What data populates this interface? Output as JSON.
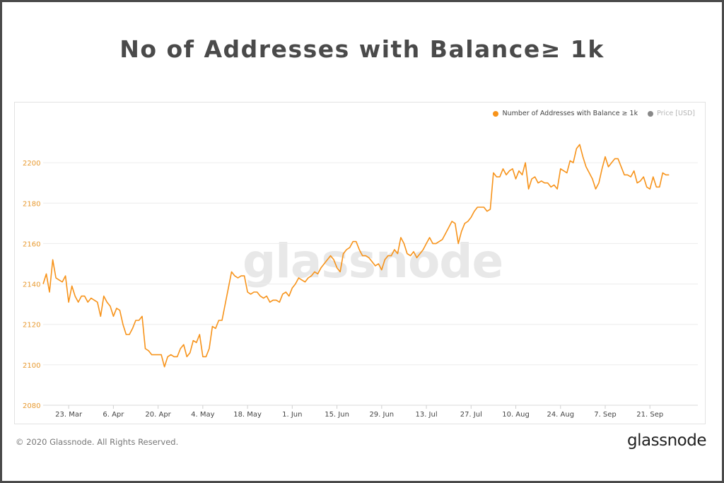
{
  "title": "No of Addresses with Balance≥ 1k",
  "copyright": "© 2020 Glassnode. All Rights Reserved.",
  "brand": "glassnode",
  "watermark": "glassnode",
  "colors": {
    "series": "#f7931a",
    "axis_text": "#e89a30",
    "price_dot": "#888888",
    "grid": "#ececec"
  },
  "chart_data": {
    "type": "line",
    "title": "No of Addresses with Balance≥ 1k",
    "xlabel": "",
    "ylabel": "",
    "ylim": [
      2080,
      2220
    ],
    "yticks": [
      2080,
      2100,
      2120,
      2140,
      2160,
      2180,
      2200
    ],
    "xticks": [
      "23. Mar",
      "6. Apr",
      "20. Apr",
      "4. May",
      "18. May",
      "1. Jun",
      "15. Jun",
      "29. Jun",
      "13. Jul",
      "27. Jul",
      "10. Aug",
      "24. Aug",
      "7. Sep",
      "21. Sep"
    ],
    "xtick_days": [
      8,
      22,
      36,
      50,
      64,
      78,
      92,
      106,
      120,
      134,
      148,
      162,
      176,
      190
    ],
    "x_start": "2020-03-15",
    "legend": [
      {
        "name": "Number of Addresses with Balance ≥ 1k",
        "active": true
      },
      {
        "name": "Price [USD]",
        "active": false
      }
    ],
    "legend_position": "top-right",
    "grid": true,
    "series": [
      {
        "name": "Number of Addresses with Balance ≥ 1k",
        "values": [
          2140,
          2145,
          2136,
          2152,
          2143,
          2142,
          2141,
          2144,
          2131,
          2139,
          2134,
          2131,
          2134,
          2134,
          2131,
          2133,
          2132,
          2131,
          2124,
          2134,
          2131,
          2129,
          2124,
          2128,
          2127,
          2120,
          2115,
          2115,
          2118,
          2122,
          2122,
          2124,
          2108,
          2107,
          2105,
          2105,
          2105,
          2105,
          2099,
          2104,
          2105,
          2104,
          2104,
          2108,
          2110,
          2104,
          2106,
          2112,
          2111,
          2115,
          2104,
          2104,
          2108,
          2119,
          2118,
          2122,
          2122,
          2130,
          2138,
          2146,
          2144,
          2143,
          2144,
          2144,
          2136,
          2135,
          2136,
          2136,
          2134,
          2133,
          2134,
          2131,
          2132,
          2132,
          2131,
          2135,
          2136,
          2134,
          2138,
          2140,
          2143,
          2142,
          2141,
          2143,
          2144,
          2146,
          2145,
          2148,
          2150,
          2152,
          2154,
          2152,
          2148,
          2146,
          2155,
          2157,
          2158,
          2161,
          2161,
          2157,
          2154,
          2154,
          2153,
          2151,
          2149,
          2150,
          2147,
          2152,
          2154,
          2154,
          2157,
          2155,
          2163,
          2160,
          2155,
          2154,
          2156,
          2153,
          2155,
          2157,
          2160,
          2163,
          2160,
          2160,
          2161,
          2162,
          2165,
          2168,
          2171,
          2170,
          2160,
          2166,
          2170,
          2171,
          2173,
          2176,
          2178,
          2178,
          2178,
          2176,
          2177,
          2195,
          2193,
          2193,
          2197,
          2194,
          2196,
          2197,
          2192,
          2196,
          2194,
          2200,
          2187,
          2192,
          2193,
          2190,
          2191,
          2190,
          2190,
          2188,
          2189,
          2187,
          2197,
          2196,
          2195,
          2201,
          2200,
          2207,
          2209,
          2203,
          2198,
          2195,
          2192,
          2187,
          2190,
          2197,
          2203,
          2198,
          2200,
          2202,
          2202,
          2198,
          2194,
          2194,
          2193,
          2196,
          2190,
          2191,
          2193,
          2188,
          2187,
          2193,
          2188,
          2188,
          2195,
          2194,
          2194
        ]
      }
    ]
  }
}
